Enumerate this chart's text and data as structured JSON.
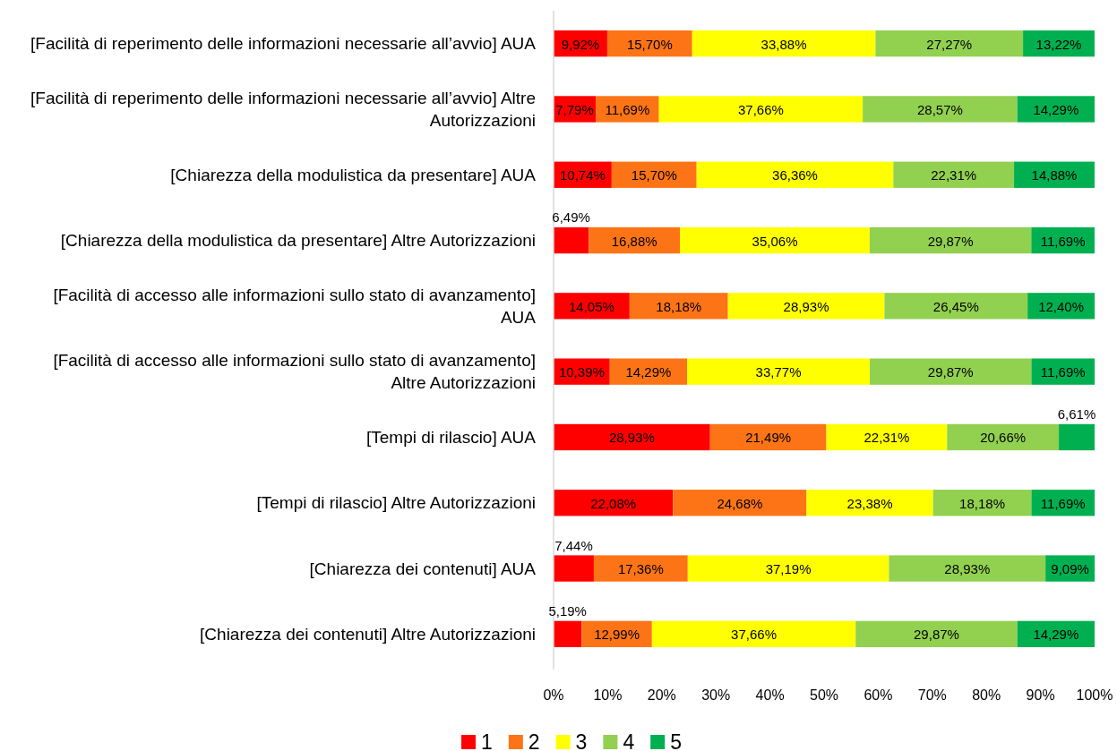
{
  "chart_data": {
    "type": "bar",
    "orientation": "horizontal",
    "stacked": true,
    "categories": [
      "[Facilità di reperimento delle informazioni necessarie all’avvio] AUA",
      "[Facilità di reperimento delle informazioni necessarie all’avvio] Altre Autorizzazioni",
      "[Chiarezza della modulistica da presentare] AUA",
      "[Chiarezza della modulistica da presentare] Altre Autorizzazioni",
      "[Facilità di accesso alle informazioni sullo stato di avanzamento] AUA",
      "[Facilità di accesso alle informazioni sullo stato di avanzamento] Altre Autorizzazioni",
      "[Tempi di rilascio] AUA",
      "[Tempi di rilascio] Altre Autorizzazioni",
      "[Chiarezza dei contenuti] AUA",
      "[Chiarezza dei contenuti] Altre Autorizzazioni"
    ],
    "xlim": [
      0,
      100
    ],
    "xticks": [
      {
        "value": 0,
        "label": "0%"
      },
      {
        "value": 10,
        "label": "10%"
      },
      {
        "value": 20,
        "label": "20%"
      },
      {
        "value": 30,
        "label": "30%"
      },
      {
        "value": 40,
        "label": "40%"
      },
      {
        "value": 50,
        "label": "50%"
      },
      {
        "value": 60,
        "label": "60%"
      },
      {
        "value": 70,
        "label": "70%"
      },
      {
        "value": 80,
        "label": "80%"
      },
      {
        "value": 90,
        "label": "90%"
      },
      {
        "value": 100,
        "label": "100%"
      }
    ],
    "legend": "bottom",
    "series": [
      {
        "name": "1",
        "color": "#ff0000",
        "values": [
          9.92,
          7.79,
          10.74,
          6.49,
          14.05,
          10.39,
          28.93,
          22.08,
          7.44,
          5.19
        ],
        "value_labels": [
          "9,92%",
          "7,79%",
          "10,74%",
          "6,49%",
          "14,05%",
          "10,39%",
          "28,93%",
          "22,08%",
          "7,44%",
          "5,19%"
        ]
      },
      {
        "name": "2",
        "color": "#fd7416",
        "values": [
          15.7,
          11.69,
          15.7,
          16.88,
          18.18,
          14.29,
          21.49,
          24.68,
          17.36,
          12.99
        ],
        "value_labels": [
          "15,70%",
          "11,69%",
          "15,70%",
          "16,88%",
          "18,18%",
          "14,29%",
          "21,49%",
          "24,68%",
          "17,36%",
          "12,99%"
        ]
      },
      {
        "name": "3",
        "color": "#ffff00",
        "values": [
          33.88,
          37.66,
          36.36,
          35.06,
          28.93,
          33.77,
          22.31,
          23.38,
          37.19,
          37.66
        ],
        "value_labels": [
          "33,88%",
          "37,66%",
          "36,36%",
          "35,06%",
          "28,93%",
          "33,77%",
          "22,31%",
          "23,38%",
          "37,19%",
          "37,66%"
        ]
      },
      {
        "name": "4",
        "color": "#92d050",
        "values": [
          27.27,
          28.57,
          22.31,
          29.87,
          26.45,
          29.87,
          20.66,
          18.18,
          28.93,
          29.87
        ],
        "value_labels": [
          "27,27%",
          "28,57%",
          "22,31%",
          "29,87%",
          "26,45%",
          "29,87%",
          "20,66%",
          "18,18%",
          "28,93%",
          "29,87%"
        ]
      },
      {
        "name": "5",
        "color": "#00b050",
        "values": [
          13.22,
          14.29,
          14.88,
          11.69,
          12.4,
          11.69,
          6.61,
          11.69,
          9.09,
          14.29
        ],
        "value_labels": [
          "13,22%",
          "14,29%",
          "14,88%",
          "11,69%",
          "12,40%",
          "11,69%",
          "6,61%",
          "11,69%",
          "9,09%",
          "14,29%"
        ]
      }
    ]
  }
}
